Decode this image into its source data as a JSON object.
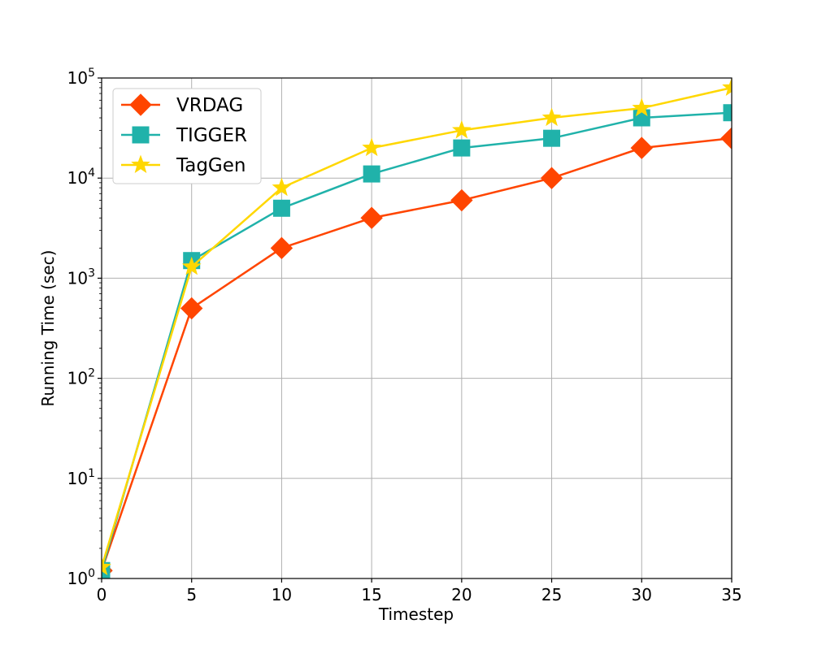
{
  "chart_data": {
    "type": "line",
    "title": "",
    "xlabel": "Timestep",
    "ylabel": "Running Time (sec)",
    "x": [
      0,
      5,
      10,
      15,
      20,
      25,
      30,
      35
    ],
    "xlim": [
      0,
      35
    ],
    "ylim": [
      1,
      100000
    ],
    "yscale": "log",
    "x_ticks": [
      0,
      5,
      10,
      15,
      20,
      25,
      30,
      35
    ],
    "x_tick_labels": [
      "0",
      "5",
      "10",
      "15",
      "20",
      "25",
      "30",
      "35"
    ],
    "y_ticks": [
      1,
      10,
      100,
      1000,
      10000,
      100000
    ],
    "y_tick_labels": [
      {
        "base": "10",
        "exp": "0"
      },
      {
        "base": "10",
        "exp": "1"
      },
      {
        "base": "10",
        "exp": "2"
      },
      {
        "base": "10",
        "exp": "3"
      },
      {
        "base": "10",
        "exp": "4"
      },
      {
        "base": "10",
        "exp": "5"
      }
    ],
    "grid": true,
    "legend_position": "top-left",
    "series": [
      {
        "name": "VRDAG",
        "color": "#ff4500",
        "marker": "diamond",
        "values": [
          1.2,
          500,
          2000,
          4000,
          6000,
          10000,
          20000,
          25000
        ]
      },
      {
        "name": "TIGGER",
        "color": "#20b2aa",
        "marker": "square",
        "values": [
          1.2,
          1500,
          5000,
          11000,
          20000,
          25000,
          40000,
          45000
        ]
      },
      {
        "name": "TagGen",
        "color": "#ffd700",
        "marker": "star",
        "values": [
          1.3,
          1300,
          8000,
          20000,
          30000,
          40000,
          50000,
          80000
        ]
      }
    ]
  }
}
